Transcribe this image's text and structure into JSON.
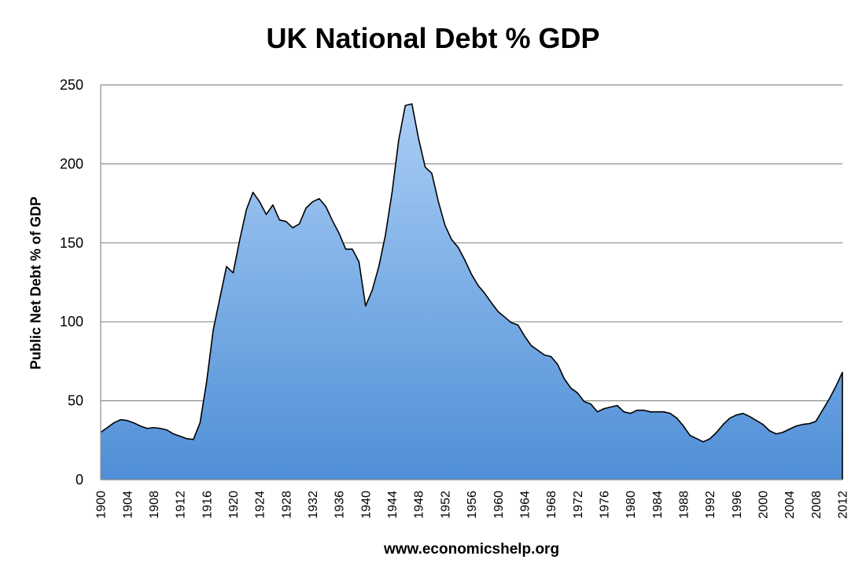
{
  "chart_data": {
    "type": "area",
    "title": "UK National Debt % GDP",
    "xlabel": "www.economicshelp.org",
    "ylabel": "Public Net Debt % of GDP",
    "xlim": [
      1900,
      2012
    ],
    "ylim": [
      0,
      250
    ],
    "yticks": [
      0,
      50,
      100,
      150,
      200,
      250
    ],
    "xticks": [
      1900,
      1904,
      1908,
      1912,
      1916,
      1920,
      1924,
      1928,
      1932,
      1936,
      1940,
      1944,
      1948,
      1952,
      1956,
      1960,
      1964,
      1968,
      1972,
      1976,
      1980,
      1984,
      1988,
      1992,
      1996,
      2000,
      2004,
      2008,
      2012
    ],
    "grid": "horizontal",
    "legend": "none",
    "fill_color_top": "#a9cdf5",
    "fill_color_bottom": "#4f8fd6",
    "line_color": "#000000",
    "grid_color": "#8c8c8c",
    "x": [
      1900,
      1901,
      1902,
      1903,
      1904,
      1905,
      1906,
      1907,
      1908,
      1909,
      1910,
      1911,
      1912,
      1913,
      1914,
      1915,
      1916,
      1917,
      1918,
      1919,
      1920,
      1921,
      1922,
      1923,
      1924,
      1925,
      1926,
      1927,
      1928,
      1929,
      1930,
      1931,
      1932,
      1933,
      1934,
      1935,
      1936,
      1937,
      1938,
      1939,
      1940,
      1941,
      1942,
      1943,
      1944,
      1945,
      1946,
      1947,
      1948,
      1949,
      1950,
      1951,
      1952,
      1953,
      1954,
      1955,
      1956,
      1957,
      1958,
      1959,
      1960,
      1961,
      1962,
      1963,
      1964,
      1965,
      1966,
      1967,
      1968,
      1969,
      1970,
      1971,
      1972,
      1973,
      1974,
      1975,
      1976,
      1977,
      1978,
      1979,
      1980,
      1981,
      1982,
      1983,
      1984,
      1985,
      1986,
      1987,
      1988,
      1989,
      1990,
      1991,
      1992,
      1993,
      1994,
      1995,
      1996,
      1997,
      1998,
      1999,
      2000,
      2001,
      2002,
      2003,
      2004,
      2005,
      2006,
      2007,
      2008,
      2009,
      2010,
      2011,
      2012
    ],
    "values": [
      30,
      33,
      36,
      38,
      37.5,
      36,
      34,
      32.5,
      33,
      32.5,
      31.5,
      29,
      27.5,
      26,
      25.5,
      36,
      62,
      95,
      115,
      135,
      131,
      152,
      171,
      182,
      176,
      168,
      174,
      164.5,
      163.5,
      159.5,
      162,
      172,
      176,
      178,
      173,
      164,
      156,
      146,
      146,
      138,
      110,
      120,
      135,
      155,
      182,
      215,
      237,
      238,
      216,
      198,
      194,
      176,
      161,
      152,
      147,
      139,
      130,
      123,
      118,
      112,
      106.5,
      103,
      99.5,
      98,
      91,
      85,
      82,
      79,
      78,
      73,
      64,
      58,
      55,
      49.5,
      48,
      43,
      45,
      46,
      47,
      43,
      42,
      44,
      44,
      43,
      43,
      43,
      42,
      39,
      34,
      28,
      26,
      24,
      26,
      30,
      35,
      39,
      41,
      42,
      40,
      37.5,
      35,
      31,
      29,
      30,
      32,
      34,
      35,
      35.5,
      37,
      44,
      51,
      59,
      68
    ]
  }
}
